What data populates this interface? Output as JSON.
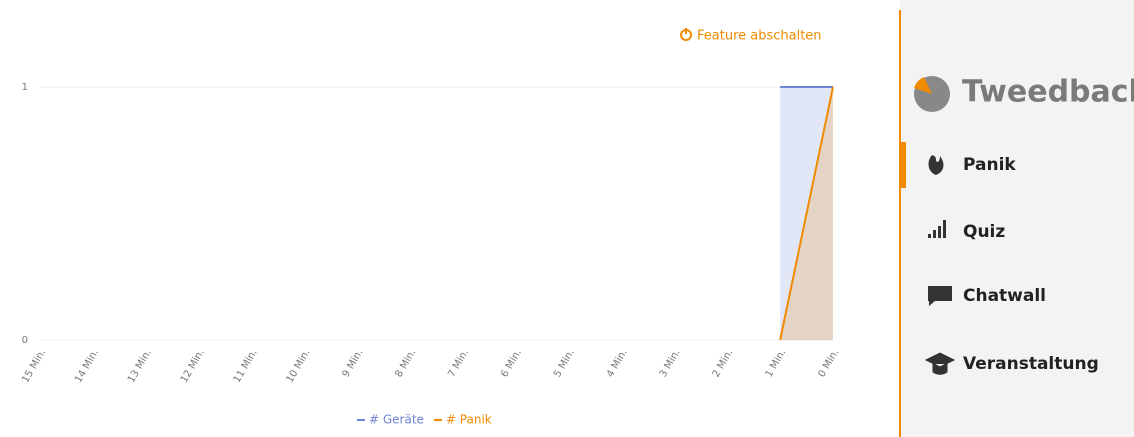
{
  "feature_link": "Feature abschalten",
  "chart_data": {
    "type": "line",
    "area": true,
    "categories": [
      "15 Min.",
      "14 Min.",
      "13 Min.",
      "12 Min.",
      "11 Min.",
      "10 Min.",
      "9 Min.",
      "8 Min.",
      "7 Min.",
      "6 Min.",
      "5 Min.",
      "4 Min.",
      "3 Min.",
      "2 Min.",
      "1 Min.",
      "0 Min."
    ],
    "series": [
      {
        "name": "# Geräte",
        "color": "#6f86d6",
        "values": [
          null,
          null,
          null,
          null,
          null,
          null,
          null,
          null,
          null,
          null,
          null,
          null,
          null,
          null,
          1,
          1
        ]
      },
      {
        "name": "# Panik",
        "color": "#f08a00",
        "values": [
          null,
          null,
          null,
          null,
          null,
          null,
          null,
          null,
          null,
          null,
          null,
          null,
          null,
          null,
          0,
          1
        ]
      }
    ],
    "ylim": [
      0,
      1
    ],
    "yticks": [
      0,
      1
    ],
    "grid": true
  },
  "sidebar": {
    "brand": "Tweedback",
    "menu": [
      "Panik",
      "Quiz",
      "Chatwall",
      "Veranstaltung"
    ],
    "active": 0
  }
}
